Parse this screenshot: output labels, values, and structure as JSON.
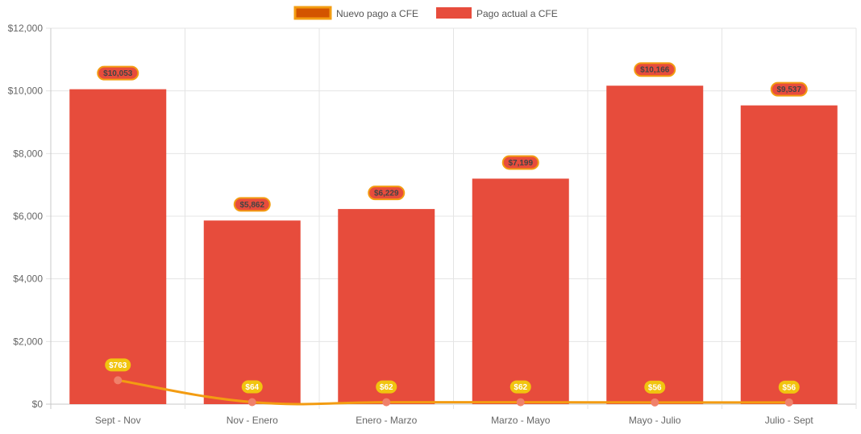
{
  "chart_data": {
    "type": "bar",
    "title": "",
    "xlabel": "",
    "ylabel": "",
    "ylim": [
      0,
      12000
    ],
    "y_ticks": [
      0,
      2000,
      4000,
      6000,
      8000,
      10000,
      12000
    ],
    "y_tick_labels": [
      "$0",
      "$2,000",
      "$4,000",
      "$6,000",
      "$8,000",
      "$10,000",
      "$12,000"
    ],
    "grid": true,
    "legend_position": "top-center",
    "categories": [
      "Sept - Nov",
      "Nov - Enero",
      "Enero - Marzo",
      "Marzo - Mayo",
      "Mayo - Julio",
      "Julio - Sept"
    ],
    "series": [
      {
        "name": "Nuevo pago a CFE",
        "type": "line",
        "values": [
          763,
          64,
          62,
          62,
          56,
          56
        ],
        "labels": [
          "$763",
          "$64",
          "$62",
          "$62",
          "$56",
          "$56"
        ],
        "color": "#f39c12",
        "legend_fill": "#d35400",
        "legend_border": "#f39c12",
        "point_color": "#f0806a",
        "label_bg": "#f1c40f"
      },
      {
        "name": "Pago actual a CFE",
        "type": "bar",
        "values": [
          10053,
          5862,
          6229,
          7199,
          10166,
          9537
        ],
        "labels": [
          "$10,053",
          "$5,862",
          "$6,229",
          "$7,199",
          "$10,166",
          "$9,537"
        ],
        "color": "#e74c3c",
        "label_bg": "#e74c3c",
        "label_border": "#f39c12"
      }
    ]
  }
}
